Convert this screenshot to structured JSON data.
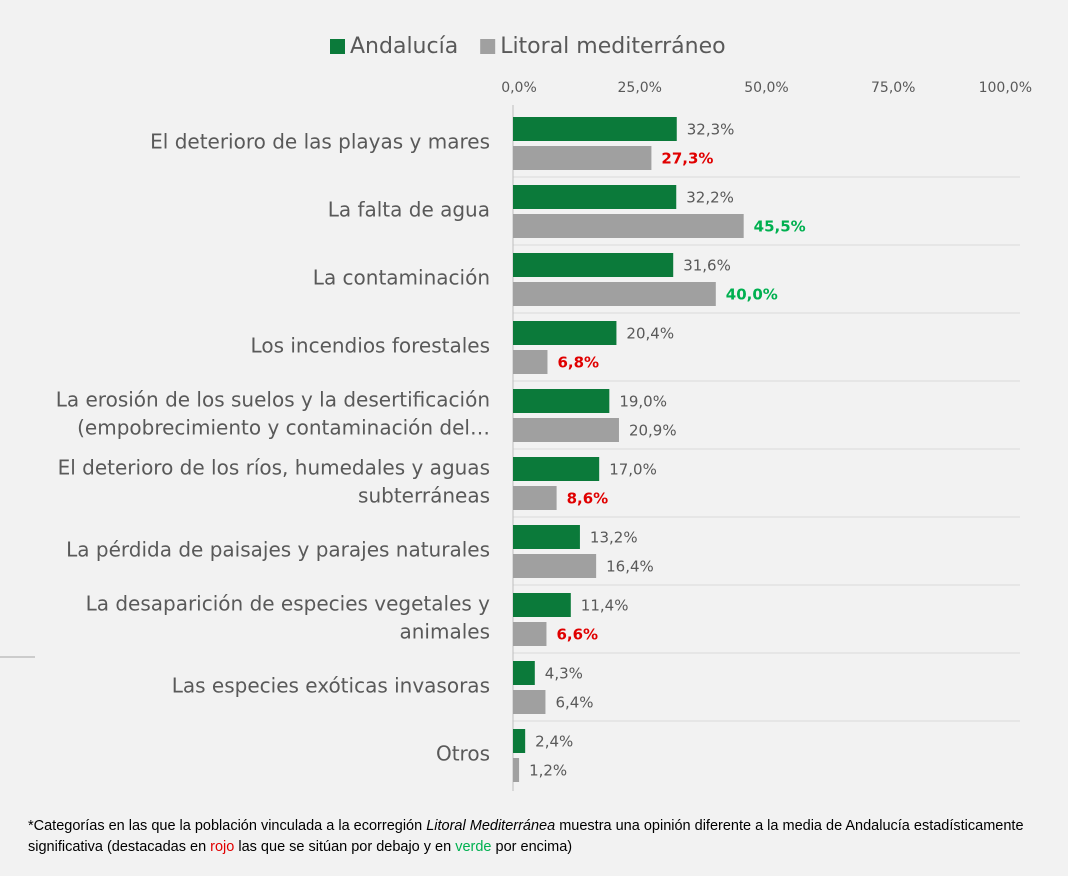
{
  "chart_data": {
    "type": "hbar",
    "categories": [
      [
        "El deterioro de las playas y mares"
      ],
      [
        "La falta de agua"
      ],
      [
        "La contaminación"
      ],
      [
        "Los incendios forestales"
      ],
      [
        "La erosión de los suelos y la desertificación",
        "(empobrecimiento y contaminación del…"
      ],
      [
        "El deterioro de los ríos, humedales y aguas",
        "subterráneas"
      ],
      [
        "La pérdida de paisajes y parajes naturales"
      ],
      [
        "La desaparición de especies vegetales y",
        "animales"
      ],
      [
        "Las especies exóticas invasoras"
      ],
      [
        "Otros"
      ]
    ],
    "series": [
      {
        "name": "Andalucía",
        "color": "#0b7a3a",
        "values": [
          32.3,
          32.2,
          31.6,
          20.4,
          19.0,
          17.0,
          13.2,
          11.4,
          4.3,
          2.4
        ],
        "value_labels": [
          "32,3%",
          "32,2%",
          "31,6%",
          "20,4%",
          "19,0%",
          "17,0%",
          "13,2%",
          "11,4%",
          "4,3%",
          "2,4%"
        ]
      },
      {
        "name": "Litoral mediterráneo",
        "color": "#a0a0a0",
        "values": [
          27.3,
          45.5,
          40.0,
          6.8,
          20.9,
          8.6,
          16.4,
          6.6,
          6.4,
          1.2
        ],
        "value_labels": [
          "27,3%",
          "45,5%",
          "40,0%",
          "6,8%",
          "20,9%",
          "8,6%",
          "16,4%",
          "6,6%",
          "6,4%",
          "1,2%"
        ],
        "label_colors": [
          "#e00000",
          "#00b050",
          "#00b050",
          "#e00000",
          null,
          "#e00000",
          null,
          "#e00000",
          null,
          null
        ]
      }
    ],
    "xlim": [
      0,
      100
    ],
    "xticks": [
      {
        "value": 0,
        "label": "0,0%"
      },
      {
        "value": 25,
        "label": "25,0%"
      },
      {
        "value": 50,
        "label": "50,0%"
      },
      {
        "value": 75,
        "label": "75,0%"
      },
      {
        "value": 100,
        "label": "100,0%"
      }
    ],
    "grid": true,
    "legend": "top",
    "note": [
      "*Categorías en las que la población vinculada a la ecorregión ",
      "Litoral Mediterránea",
      " muestra una opinión diferente a la media de Andalucía estadísticamente significativa (destacadas en ",
      "rojo",
      " las que se sitúan por debajo y en ",
      "verde",
      " por encima)"
    ]
  }
}
